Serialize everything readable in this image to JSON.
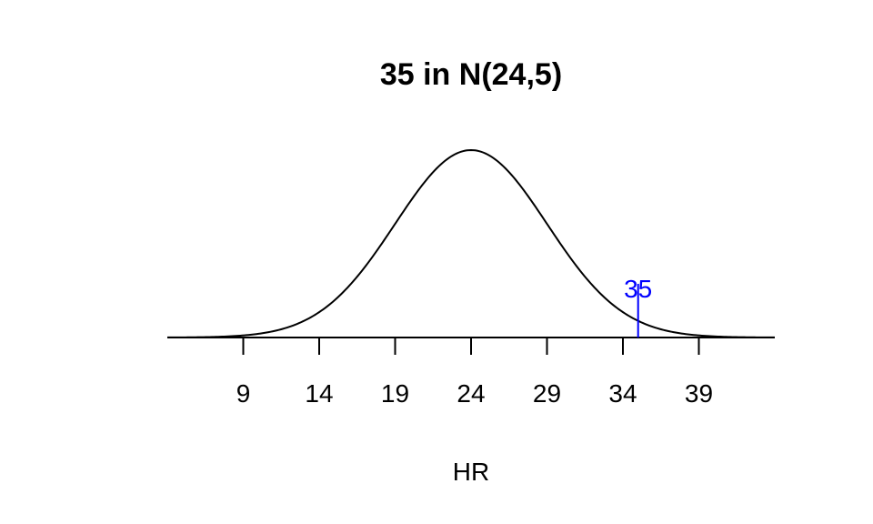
{
  "chart_data": {
    "type": "line",
    "title": "35 in N(24,5)",
    "xlabel": "HR",
    "ylabel": "",
    "distribution": {
      "name": "normal",
      "mean": 24,
      "sd": 5
    },
    "xlim": [
      4,
      44
    ],
    "xticks": [
      9,
      14,
      19,
      24,
      29,
      34,
      39
    ],
    "xtick_labels": [
      "9",
      "14",
      "19",
      "24",
      "29",
      "34",
      "39"
    ],
    "marker": {
      "x": 35,
      "label": "35",
      "color": "#0000ff"
    },
    "curve_color": "#000000",
    "grid": false,
    "legend": "none"
  }
}
